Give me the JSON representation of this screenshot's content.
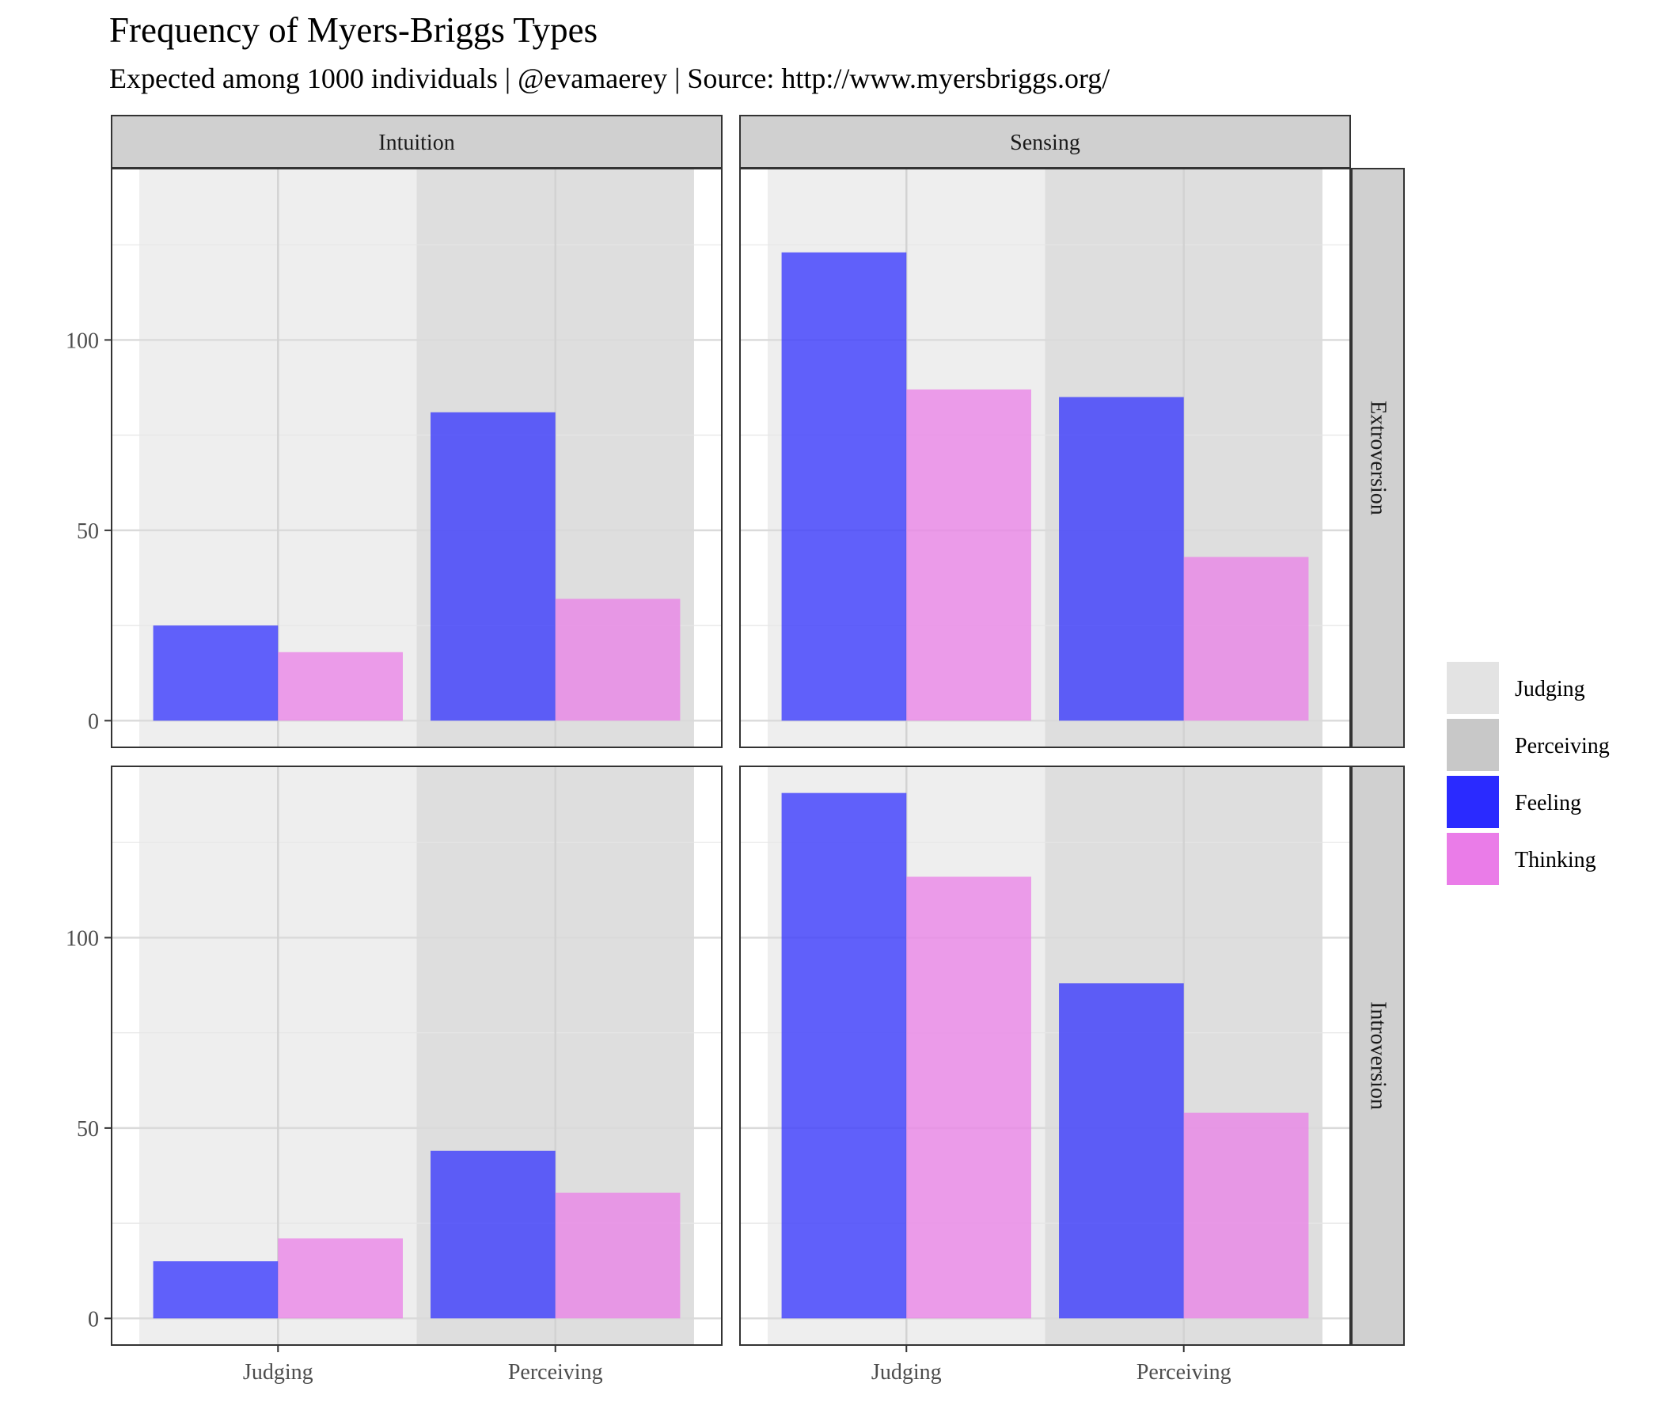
{
  "chart_data": {
    "type": "bar",
    "title": "Frequency of Myers-Briggs Types",
    "subtitle": "Expected among 1000 individuals | @evamaerey | Source: http://www.myersbriggs.org/",
    "facet_columns": [
      "Intuition",
      "Sensing"
    ],
    "facet_rows": [
      "Extroversion",
      "Introversion"
    ],
    "categories": [
      "Judging",
      "Perceiving"
    ],
    "y_ticks": [
      0,
      50,
      100
    ],
    "ylim": [
      -7,
      145
    ],
    "grid": true,
    "legend_position": "right",
    "legend": [
      {
        "label": "Judging",
        "color": "#e3e3e3"
      },
      {
        "label": "Perceiving",
        "color": "#c8c8c8"
      },
      {
        "label": "Feeling",
        "color": "#2a2aff"
      },
      {
        "label": "Thinking",
        "color": "#ea7ce8"
      }
    ],
    "panels": [
      {
        "row": "Extroversion",
        "col": "Intuition",
        "series": [
          {
            "name": "Feeling",
            "values": [
              25,
              81
            ]
          },
          {
            "name": "Thinking",
            "values": [
              18,
              32
            ]
          }
        ]
      },
      {
        "row": "Extroversion",
        "col": "Sensing",
        "series": [
          {
            "name": "Feeling",
            "values": [
              123,
              85
            ]
          },
          {
            "name": "Thinking",
            "values": [
              87,
              43
            ]
          }
        ]
      },
      {
        "row": "Introversion",
        "col": "Intuition",
        "series": [
          {
            "name": "Feeling",
            "values": [
              15,
              44
            ]
          },
          {
            "name": "Thinking",
            "values": [
              21,
              33
            ]
          }
        ]
      },
      {
        "row": "Introversion",
        "col": "Sensing",
        "series": [
          {
            "name": "Feeling",
            "values": [
              138,
              88
            ]
          },
          {
            "name": "Thinking",
            "values": [
              116,
              54
            ]
          }
        ]
      }
    ],
    "colors": {
      "feeling": "#2a2aff",
      "thinking": "#ea7ce8",
      "judging_bg": "#eeeeee",
      "perceiving_bg": "#dedede",
      "strip": "#d0d0d0"
    }
  }
}
